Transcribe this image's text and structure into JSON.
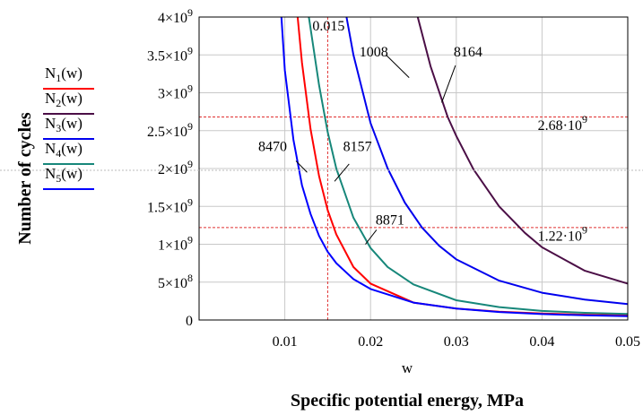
{
  "chart_data": {
    "type": "line",
    "xlabel": "Specific potential energy, MPa",
    "xvar": "w",
    "ylabel": "Number of cycles",
    "xlim": [
      0,
      0.05
    ],
    "ylim": [
      0,
      4000000000
    ],
    "x_ticks": [
      {
        "value": 0.01,
        "label": "0.01"
      },
      {
        "value": 0.02,
        "label": "0.02"
      },
      {
        "value": 0.03,
        "label": "0.03"
      },
      {
        "value": 0.04,
        "label": "0.04"
      },
      {
        "value": 0.05,
        "label": "0.05"
      }
    ],
    "y_ticks": [
      {
        "value": 0,
        "mant": "0",
        "exp": ""
      },
      {
        "value": 500000000,
        "mant": "5×10",
        "exp": "8"
      },
      {
        "value": 1000000000,
        "mant": "1×10",
        "exp": "9"
      },
      {
        "value": 1500000000,
        "mant": "1.5×10",
        "exp": "9"
      },
      {
        "value": 2000000000,
        "mant": "2×10",
        "exp": "9"
      },
      {
        "value": 2500000000,
        "mant": "2.5×10",
        "exp": "9"
      },
      {
        "value": 3000000000,
        "mant": "3×10",
        "exp": "9"
      },
      {
        "value": 3500000000,
        "mant": "3.5×10",
        "exp": "9"
      },
      {
        "value": 4000000000,
        "mant": "4×10",
        "exp": "9"
      }
    ],
    "grid": true,
    "series": [
      {
        "name": "N1(w)",
        "color": "#ff0000",
        "x": [
          0.0115,
          0.012,
          0.013,
          0.014,
          0.015,
          0.016,
          0.018,
          0.02,
          0.025,
          0.03,
          0.035,
          0.04,
          0.045,
          0.05
        ],
        "y": [
          4000000000,
          3400000000,
          2520000000,
          1900000000,
          1450000000,
          1130000000,
          700000000,
          480000000,
          230000000,
          150000000,
          110000000,
          85000000,
          70000000,
          60000000
        ]
      },
      {
        "name": "N2(w)",
        "color": "#4b0f46",
        "x": [
          0.0255,
          0.027,
          0.029,
          0.03,
          0.032,
          0.035,
          0.038,
          0.04,
          0.045,
          0.05
        ],
        "y": [
          4000000000,
          3350000000,
          2680000000,
          2430000000,
          1990000000,
          1500000000,
          1150000000,
          960000000,
          650000000,
          480000000
        ]
      },
      {
        "name": "N3(w)",
        "color": "#0000ee",
        "x": [
          0.0172,
          0.018,
          0.02,
          0.022,
          0.024,
          0.026,
          0.028,
          0.03,
          0.035,
          0.04,
          0.045,
          0.05
        ],
        "y": [
          4000000000,
          3500000000,
          2600000000,
          2000000000,
          1550000000,
          1220000000,
          980000000,
          800000000,
          520000000,
          360000000,
          270000000,
          210000000
        ]
      },
      {
        "name": "N4(w)",
        "color": "#17877a",
        "x": [
          0.0128,
          0.014,
          0.015,
          0.016,
          0.018,
          0.02,
          0.022,
          0.025,
          0.03,
          0.035,
          0.04,
          0.045,
          0.05
        ],
        "y": [
          4000000000,
          3100000000,
          2480000000,
          2000000000,
          1350000000,
          950000000,
          700000000,
          470000000,
          260000000,
          170000000,
          120000000,
          95000000,
          80000000
        ]
      },
      {
        "name": "N5(w)",
        "color": "#0000ff",
        "x": [
          0.0096,
          0.01,
          0.011,
          0.012,
          0.013,
          0.014,
          0.015,
          0.016,
          0.018,
          0.02,
          0.025,
          0.03,
          0.035,
          0.04,
          0.045,
          0.05
        ],
        "y": [
          4000000000,
          3300000000,
          2380000000,
          1780000000,
          1400000000,
          1110000000,
          900000000,
          750000000,
          540000000,
          410000000,
          230000000,
          150000000,
          105000000,
          78000000,
          62000000,
          50000000
        ]
      }
    ],
    "reference_lines": [
      {
        "orientation": "horizontal",
        "value": 2680000000,
        "color": "#e03030"
      },
      {
        "orientation": "horizontal",
        "value": 1220000000,
        "color": "#e03030"
      },
      {
        "orientation": "vertical",
        "value": 0.015,
        "color": "#e03030"
      }
    ],
    "annotations": [
      {
        "text": "0.015",
        "x": 0.0151,
        "y": 3820000000,
        "anchor": "middle"
      },
      {
        "text": "1008",
        "x": 0.0187,
        "y": 3480000000,
        "anchor": "start",
        "pointer": [
          0.0218,
          3500000000,
          0.0245,
          3200000000
        ]
      },
      {
        "text": "8164",
        "x": 0.0297,
        "y": 3480000000,
        "anchor": "start",
        "pointer": [
          0.0299,
          3360000000,
          0.0283,
          2870000000
        ]
      },
      {
        "text": "8470",
        "x": 0.0069,
        "y": 2230000000,
        "anchor": "start",
        "pointer": [
          0.0113,
          2100000000,
          0.0126,
          1950000000
        ]
      },
      {
        "text": "8157",
        "x": 0.0168,
        "y": 2230000000,
        "anchor": "start",
        "pointer": [
          0.0175,
          2060000000,
          0.0158,
          1830000000
        ]
      },
      {
        "text": "8871",
        "x": 0.0206,
        "y": 1260000000,
        "anchor": "start",
        "pointer": [
          0.0207,
          1190000000,
          0.0194,
          1000000000
        ]
      },
      {
        "text": "2.68·10",
        "exp": "9",
        "x": 0.0395,
        "y": 2510000000,
        "anchor": "start"
      },
      {
        "text": "1.22·10",
        "exp": "9",
        "x": 0.0395,
        "y": 1050000000,
        "anchor": "start"
      }
    ]
  }
}
